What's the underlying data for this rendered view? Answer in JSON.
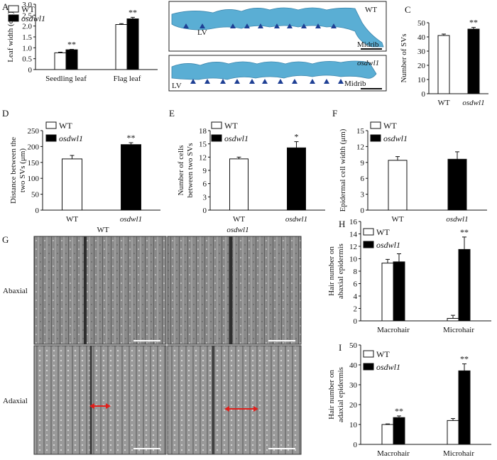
{
  "figure": {
    "colors": {
      "wt": "#ffffff",
      "mutant": "#000000",
      "stain": "#5aaed4",
      "arrowhead": "#1e3f94",
      "measure_arrow": "#e0201c"
    },
    "legend": {
      "wt": "WT",
      "mutant": "osdwl1"
    },
    "panel_letters": [
      "A",
      "B",
      "C",
      "D",
      "E",
      "F",
      "G",
      "H",
      "I"
    ],
    "panel_b": {
      "top_labels": {
        "genotype": "WT",
        "lv": "LV",
        "midrib": "Midrib"
      },
      "bottom_labels": {
        "genotype": "osdwl1",
        "lv": "LV",
        "midrib": "Midrib"
      }
    },
    "panel_g": {
      "col_labels": [
        "WT",
        "osdwl1"
      ],
      "row_labels": [
        "Abaxial",
        "Adaxial"
      ]
    }
  },
  "chart_data": [
    {
      "panel": "A",
      "type": "bar",
      "ylabel": "Leaf width (cm)",
      "categories": [
        "Seedling leaf",
        "Flag leaf"
      ],
      "series": [
        {
          "name": "WT",
          "values": [
            0.77,
            2.07
          ],
          "errors": [
            0.03,
            0.04
          ]
        },
        {
          "name": "osdwl1",
          "values": [
            0.91,
            2.33
          ],
          "errors": [
            0.02,
            0.07
          ]
        }
      ],
      "significance": [
        "**",
        "**"
      ],
      "ylim": [
        0,
        3.0
      ],
      "yticks": [
        "0",
        "0.5",
        "1.0",
        "1.5",
        "2.0",
        "2.5",
        "3.0"
      ]
    },
    {
      "panel": "C",
      "type": "bar",
      "ylabel": "Number of SVs",
      "categories": [
        "WT",
        "osdwl1"
      ],
      "series": [
        {
          "name": "values",
          "values": [
            41,
            45.5
          ],
          "errors": [
            1.0,
            1.2
          ]
        }
      ],
      "significance": [
        "",
        "**"
      ],
      "ylim": [
        0,
        50
      ],
      "yticks": [
        "0",
        "10",
        "20",
        "30",
        "40",
        "50"
      ]
    },
    {
      "panel": "D",
      "type": "bar",
      "ylabel": "Distance between the two SVs (μm)",
      "categories": [
        "WT",
        "osdwl1"
      ],
      "series": [
        {
          "name": "values",
          "values": [
            161,
            206
          ],
          "errors": [
            11,
            6
          ]
        }
      ],
      "significance": [
        "",
        "**"
      ],
      "ylim": [
        0,
        250
      ],
      "yticks": [
        "0",
        "50",
        "100",
        "150",
        "200",
        "250"
      ]
    },
    {
      "panel": "E",
      "type": "bar",
      "ylabel": "Number of cells between two SVs",
      "categories": [
        "WT",
        "osdwl1"
      ],
      "series": [
        {
          "name": "values",
          "values": [
            11.6,
            14.1
          ],
          "errors": [
            0.4,
            1.4
          ]
        }
      ],
      "significance": [
        "",
        "*"
      ],
      "ylim": [
        0,
        18
      ],
      "yticks": [
        "0",
        "3",
        "6",
        "9",
        "12",
        "15",
        "18"
      ]
    },
    {
      "panel": "F",
      "type": "bar",
      "ylabel": "Epidermal cell width (μm)",
      "categories": [
        "WT",
        "osdwl1"
      ],
      "series": [
        {
          "name": "values",
          "values": [
            9.4,
            9.6
          ],
          "errors": [
            0.7,
            1.4
          ]
        }
      ],
      "significance": [
        "",
        ""
      ],
      "ylim": [
        0,
        15
      ],
      "yticks": [
        "0",
        "3",
        "6",
        "9",
        "12",
        "15"
      ]
    },
    {
      "panel": "H",
      "type": "bar",
      "ylabel": "Hair number on abaxial epidermis",
      "categories": [
        "Macrohair",
        "Microhair"
      ],
      "series": [
        {
          "name": "WT",
          "values": [
            9.3,
            0.4
          ],
          "errors": [
            0.6,
            0.5
          ]
        },
        {
          "name": "osdwl1",
          "values": [
            9.5,
            11.5
          ],
          "errors": [
            1.3,
            2.0
          ]
        }
      ],
      "significance": [
        "",
        "**"
      ],
      "ylim": [
        0,
        16
      ],
      "yticks": [
        "0",
        "2",
        "4",
        "6",
        "8",
        "10",
        "12",
        "14",
        "16"
      ]
    },
    {
      "panel": "I",
      "type": "bar",
      "ylabel": "Hair number on adaxial epidermis",
      "categories": [
        "Macrohair",
        "Microhair"
      ],
      "series": [
        {
          "name": "WT",
          "values": [
            10,
            12
          ],
          "errors": [
            0.3,
            1.0
          ]
        },
        {
          "name": "osdwl1",
          "values": [
            13.5,
            37
          ],
          "errors": [
            0.8,
            3.5
          ]
        }
      ],
      "significance": [
        "**",
        "**"
      ],
      "ylim": [
        0,
        50
      ],
      "yticks": [
        "0",
        "10",
        "20",
        "30",
        "40",
        "50"
      ]
    }
  ]
}
